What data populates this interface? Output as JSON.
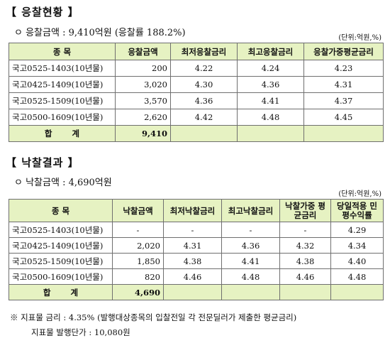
{
  "section1": {
    "title": "응찰현황",
    "bullet": "ㅇ 응찰금액 : 9,410억원 (응찰률 188.2%)",
    "unit": "(단위:억원,%)",
    "headers": [
      "종 목",
      "응찰금액",
      "최저응찰금리",
      "최고응찰금리",
      "응찰가중평균금리"
    ],
    "rows": [
      [
        "국고0525-1403(10년물)",
        "200",
        "4.22",
        "4.24",
        "4.23"
      ],
      [
        "국고0425-1409(10년물)",
        "3,020",
        "4.30",
        "4.36",
        "4.31"
      ],
      [
        "국고0525-1509(10년물)",
        "3,570",
        "4.36",
        "4.41",
        "4.37"
      ],
      [
        "국고0500-1609(10년물)",
        "2,620",
        "4.42",
        "4.48",
        "4.45"
      ]
    ],
    "total": [
      "합 계",
      "9,410",
      "",
      "",
      ""
    ]
  },
  "section2": {
    "title": "낙찰결과",
    "bullet": "ㅇ 낙찰금액 : 4,690억원",
    "unit": "(단위:억원,%)",
    "headers": [
      "종 목",
      "낙찰금액",
      "최저낙찰금리",
      "최고낙찰금리",
      "낙찰가중 평균금리",
      "당일적용 민평수익률"
    ],
    "rows": [
      [
        "국고0525-1403(10년물)",
        "-",
        "-",
        "-",
        "-",
        "4.29"
      ],
      [
        "국고0425-1409(10년물)",
        "2,020",
        "4.31",
        "4.36",
        "4.32",
        "4.34"
      ],
      [
        "국고0525-1509(10년물)",
        "1,850",
        "4.38",
        "4.41",
        "4.38",
        "4.40"
      ],
      [
        "국고0500-1609(10년물)",
        "820",
        "4.46",
        "4.48",
        "4.46",
        "4.48"
      ]
    ],
    "total": [
      "합 계",
      "4,690",
      "",
      "",
      "",
      ""
    ]
  },
  "notes": {
    "line1": "※ 지표물 금리 : 4.35% (발행대상종목의 입찰전일 각 전문딜러가 제출한 평균금리)",
    "line2": "지표물 발행단가 : 10,080원"
  }
}
